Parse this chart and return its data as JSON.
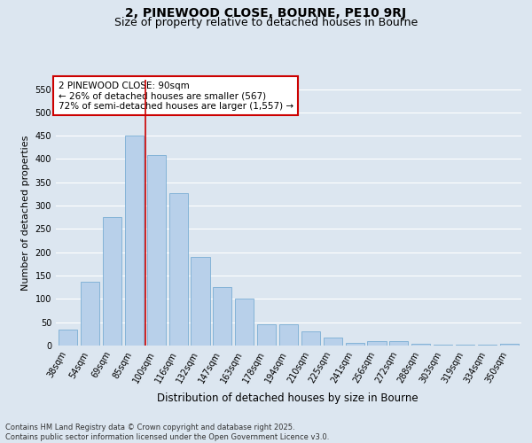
{
  "title": "2, PINEWOOD CLOSE, BOURNE, PE10 9RJ",
  "subtitle": "Size of property relative to detached houses in Bourne",
  "xlabel": "Distribution of detached houses by size in Bourne",
  "ylabel": "Number of detached properties",
  "categories": [
    "38sqm",
    "54sqm",
    "69sqm",
    "85sqm",
    "100sqm",
    "116sqm",
    "132sqm",
    "147sqm",
    "163sqm",
    "178sqm",
    "194sqm",
    "210sqm",
    "225sqm",
    "241sqm",
    "256sqm",
    "272sqm",
    "288sqm",
    "303sqm",
    "319sqm",
    "334sqm",
    "350sqm"
  ],
  "values": [
    35,
    137,
    275,
    450,
    408,
    327,
    190,
    125,
    101,
    46,
    46,
    30,
    17,
    6,
    10,
    9,
    4,
    2,
    1,
    1,
    3
  ],
  "bar_color": "#b8d0ea",
  "bar_edge_color": "#7aadd4",
  "vline_x": 3.5,
  "vline_color": "#cc0000",
  "annotation_text": "2 PINEWOOD CLOSE: 90sqm\n← 26% of detached houses are smaller (567)\n72% of semi-detached houses are larger (1,557) →",
  "annotation_box_color": "#cc0000",
  "ylim": [
    0,
    570
  ],
  "yticks": [
    0,
    50,
    100,
    150,
    200,
    250,
    300,
    350,
    400,
    450,
    500,
    550
  ],
  "bg_color": "#dce6f0",
  "grid_color": "#ffffff",
  "footer_line1": "Contains HM Land Registry data © Crown copyright and database right 2025.",
  "footer_line2": "Contains public sector information licensed under the Open Government Licence v3.0.",
  "title_fontsize": 10,
  "subtitle_fontsize": 9,
  "tick_fontsize": 7,
  "ylabel_fontsize": 8,
  "xlabel_fontsize": 8.5,
  "annotation_fontsize": 7.5,
  "footer_fontsize": 6
}
